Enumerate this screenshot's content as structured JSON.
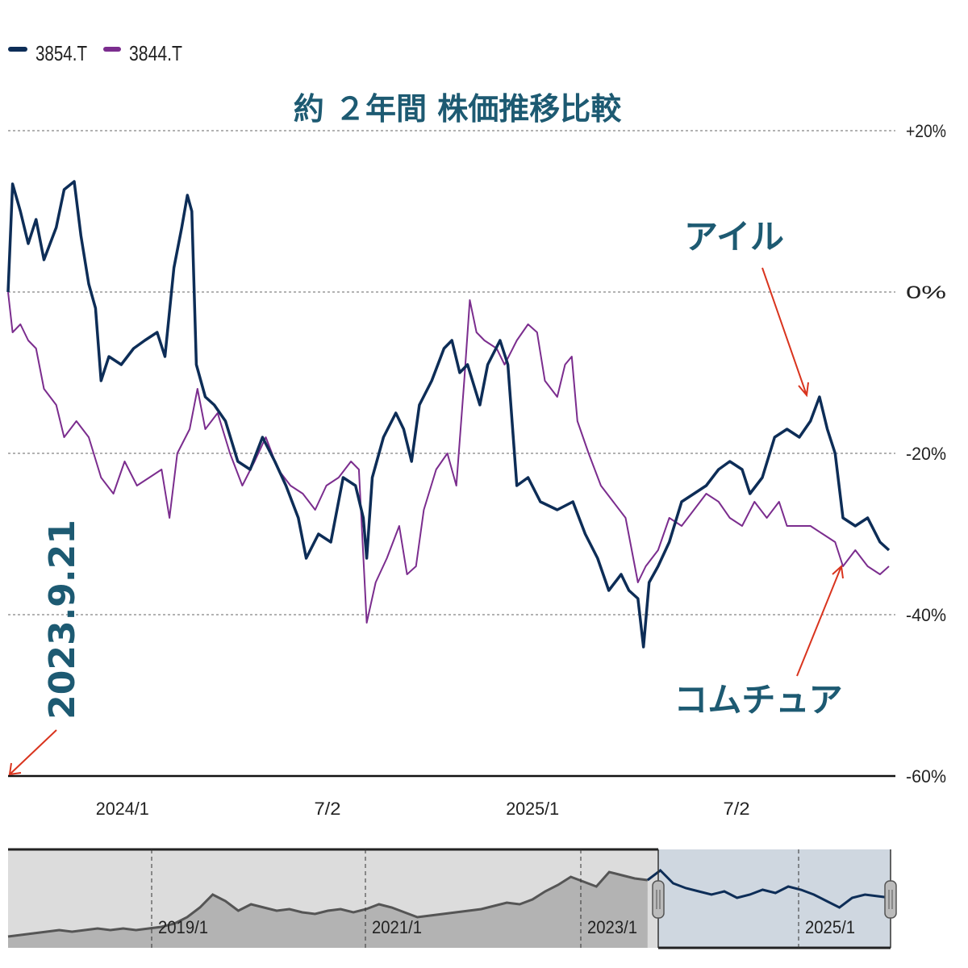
{
  "chart_data": {
    "type": "line",
    "title": "約 ２年間 株価推移比較",
    "xlabel": "",
    "ylabel": "",
    "ylim": [
      -60,
      20
    ],
    "xlim": [
      "2023-09-21",
      "2025-11-15"
    ],
    "y_ticks": [
      "+20%",
      "0%",
      "-20%",
      "-40%",
      "-60%"
    ],
    "y_tick_values": [
      20,
      0,
      -20,
      -40,
      -60
    ],
    "x_ticks": [
      "2024/1",
      "7/2",
      "2025/1",
      "7/2"
    ],
    "x_tick_dates": [
      "2024-01-01",
      "2024-07-02",
      "2025-01-01",
      "2025-07-02"
    ],
    "grid": true,
    "legend_position": "top-left",
    "series": [
      {
        "name": "3854.T",
        "color": "#0d2d57",
        "points": [
          [
            "2023-09-21",
            0
          ],
          [
            "2023-09-25",
            13.4
          ],
          [
            "2023-10-02",
            10
          ],
          [
            "2023-10-09",
            6
          ],
          [
            "2023-10-16",
            9
          ],
          [
            "2023-10-23",
            4
          ],
          [
            "2023-11-03",
            8
          ],
          [
            "2023-11-10",
            12.7
          ],
          [
            "2023-11-19",
            13.7
          ],
          [
            "2023-11-25",
            7
          ],
          [
            "2023-12-02",
            1
          ],
          [
            "2023-12-08",
            -2
          ],
          [
            "2023-12-13",
            -11
          ],
          [
            "2023-12-20",
            -8
          ],
          [
            "2023-12-31",
            -9
          ],
          [
            "2024-01-11",
            -7
          ],
          [
            "2024-01-21",
            -6
          ],
          [
            "2024-02-01",
            -5
          ],
          [
            "2024-02-08",
            -8
          ],
          [
            "2024-02-16",
            3
          ],
          [
            "2024-02-23",
            8
          ],
          [
            "2024-02-28",
            12
          ],
          [
            "2024-03-03",
            10
          ],
          [
            "2024-03-07",
            -9
          ],
          [
            "2024-03-15",
            -13
          ],
          [
            "2024-03-23",
            -14
          ],
          [
            "2024-04-02",
            -16
          ],
          [
            "2024-04-13",
            -21
          ],
          [
            "2024-04-24",
            -22
          ],
          [
            "2024-05-05",
            -18
          ],
          [
            "2024-05-16",
            -21
          ],
          [
            "2024-05-26",
            -24
          ],
          [
            "2024-06-06",
            -28
          ],
          [
            "2024-06-13",
            -33
          ],
          [
            "2024-06-24",
            -30
          ],
          [
            "2024-07-05",
            -31
          ],
          [
            "2024-07-16",
            -23
          ],
          [
            "2024-07-27",
            -24
          ],
          [
            "2024-08-03",
            -28
          ],
          [
            "2024-08-06",
            -33
          ],
          [
            "2024-08-11",
            -23
          ],
          [
            "2024-08-21",
            -18
          ],
          [
            "2024-09-01",
            -15
          ],
          [
            "2024-09-08",
            -17
          ],
          [
            "2024-09-15",
            -21
          ],
          [
            "2024-09-22",
            -14
          ],
          [
            "2024-10-03",
            -11
          ],
          [
            "2024-10-14",
            -7
          ],
          [
            "2024-10-21",
            -6
          ],
          [
            "2024-10-28",
            -10
          ],
          [
            "2024-11-04",
            -9
          ],
          [
            "2024-11-15",
            -14
          ],
          [
            "2024-11-22",
            -9
          ],
          [
            "2024-12-03",
            -6
          ],
          [
            "2024-12-10",
            -9
          ],
          [
            "2024-12-18",
            -24
          ],
          [
            "2024-12-28",
            -23
          ],
          [
            "2025-01-08",
            -26
          ],
          [
            "2025-01-23",
            -27
          ],
          [
            "2025-02-06",
            -26
          ],
          [
            "2025-02-17",
            -30
          ],
          [
            "2025-02-28",
            -33
          ],
          [
            "2025-03-10",
            -37
          ],
          [
            "2025-03-21",
            -35
          ],
          [
            "2025-03-28",
            -37
          ],
          [
            "2025-04-05",
            -38
          ],
          [
            "2025-04-10",
            -44
          ],
          [
            "2025-04-15",
            -36
          ],
          [
            "2025-04-23",
            -34
          ],
          [
            "2025-05-03",
            -31
          ],
          [
            "2025-05-14",
            -26
          ],
          [
            "2025-05-25",
            -25
          ],
          [
            "2025-06-05",
            -24
          ],
          [
            "2025-06-16",
            -22
          ],
          [
            "2025-06-26",
            -21
          ],
          [
            "2025-07-07",
            -22
          ],
          [
            "2025-07-14",
            -25
          ],
          [
            "2025-07-25",
            -23
          ],
          [
            "2025-08-05",
            -18
          ],
          [
            "2025-08-16",
            -17
          ],
          [
            "2025-08-27",
            -18
          ],
          [
            "2025-09-06",
            -16
          ],
          [
            "2025-09-14",
            -13
          ],
          [
            "2025-09-21",
            -17
          ],
          [
            "2025-09-28",
            -20
          ],
          [
            "2025-10-05",
            -28
          ],
          [
            "2025-10-16",
            -29
          ],
          [
            "2025-10-27",
            -28
          ],
          [
            "2025-11-07",
            -31
          ],
          [
            "2025-11-15",
            -32
          ]
        ]
      },
      {
        "name": "3844.T",
        "color": "#7b2d8e",
        "points": [
          [
            "2023-09-21",
            0
          ],
          [
            "2023-09-25",
            -5
          ],
          [
            "2023-10-02",
            -4
          ],
          [
            "2023-10-09",
            -6
          ],
          [
            "2023-10-16",
            -7
          ],
          [
            "2023-10-23",
            -12
          ],
          [
            "2023-11-03",
            -14
          ],
          [
            "2023-11-10",
            -18
          ],
          [
            "2023-11-21",
            -16
          ],
          [
            "2023-12-02",
            -18
          ],
          [
            "2023-12-13",
            -23
          ],
          [
            "2023-12-24",
            -25
          ],
          [
            "2024-01-03",
            -21
          ],
          [
            "2024-01-14",
            -24
          ],
          [
            "2024-01-25",
            -23
          ],
          [
            "2024-02-05",
            -22
          ],
          [
            "2024-02-12",
            -28
          ],
          [
            "2024-02-19",
            -20
          ],
          [
            "2024-03-01",
            -17
          ],
          [
            "2024-03-08",
            -12
          ],
          [
            "2024-03-15",
            -17
          ],
          [
            "2024-03-26",
            -15
          ],
          [
            "2024-04-06",
            -20
          ],
          [
            "2024-04-17",
            -24
          ],
          [
            "2024-04-28",
            -21
          ],
          [
            "2024-05-08",
            -18
          ],
          [
            "2024-05-19",
            -22
          ],
          [
            "2024-05-30",
            -24
          ],
          [
            "2024-06-10",
            -25
          ],
          [
            "2024-06-21",
            -27
          ],
          [
            "2024-07-01",
            -24
          ],
          [
            "2024-07-12",
            -23
          ],
          [
            "2024-07-23",
            -21
          ],
          [
            "2024-07-30",
            -22
          ],
          [
            "2024-08-06",
            -41
          ],
          [
            "2024-08-14",
            -36
          ],
          [
            "2024-08-24",
            -33
          ],
          [
            "2024-09-04",
            -29
          ],
          [
            "2024-09-11",
            -35
          ],
          [
            "2024-09-19",
            -34
          ],
          [
            "2024-09-26",
            -27
          ],
          [
            "2024-10-07",
            -22
          ],
          [
            "2024-10-17",
            -20
          ],
          [
            "2024-10-25",
            -24
          ],
          [
            "2024-11-01",
            -11
          ],
          [
            "2024-11-06",
            -1
          ],
          [
            "2024-11-12",
            -5
          ],
          [
            "2024-11-19",
            -6
          ],
          [
            "2024-11-30",
            -7
          ],
          [
            "2024-12-07",
            -9
          ],
          [
            "2024-12-18",
            -6
          ],
          [
            "2024-12-28",
            -4
          ],
          [
            "2025-01-05",
            -5
          ],
          [
            "2025-01-12",
            -11
          ],
          [
            "2025-01-23",
            -13
          ],
          [
            "2025-01-30",
            -9
          ],
          [
            "2025-02-05",
            -8
          ],
          [
            "2025-02-10",
            -16
          ],
          [
            "2025-02-20",
            -20
          ],
          [
            "2025-03-03",
            -24
          ],
          [
            "2025-03-14",
            -26
          ],
          [
            "2025-03-25",
            -28
          ],
          [
            "2025-04-05",
            -36
          ],
          [
            "2025-04-12",
            -34
          ],
          [
            "2025-04-23",
            -32
          ],
          [
            "2025-05-03",
            -28
          ],
          [
            "2025-05-14",
            -29
          ],
          [
            "2025-05-25",
            -27
          ],
          [
            "2025-06-05",
            -25
          ],
          [
            "2025-06-16",
            -26
          ],
          [
            "2025-06-26",
            -28
          ],
          [
            "2025-07-07",
            -29
          ],
          [
            "2025-07-18",
            -26
          ],
          [
            "2025-07-29",
            -28
          ],
          [
            "2025-08-09",
            -26
          ],
          [
            "2025-08-16",
            -29
          ],
          [
            "2025-08-27",
            -29
          ],
          [
            "2025-09-06",
            -29
          ],
          [
            "2025-09-17",
            -30
          ],
          [
            "2025-09-28",
            -31
          ],
          [
            "2025-10-05",
            -34
          ],
          [
            "2025-10-16",
            -32
          ],
          [
            "2025-10-27",
            -34
          ],
          [
            "2025-11-07",
            -35
          ],
          [
            "2025-11-15",
            -34
          ]
        ]
      }
    ],
    "annotations": [
      {
        "text": "アイル",
        "target_series": "3854.T",
        "arrow_color": "#d9341e"
      },
      {
        "text": "コムチュア",
        "target_series": "3844.T",
        "arrow_color": "#d9341e"
      },
      {
        "text": "2023.9.21",
        "arrow_color": "#d9341e"
      }
    ],
    "navigator": {
      "ticks": [
        "2019/1",
        "2021/1",
        "2023/1",
        "2025/1"
      ],
      "selected_color": "#cfd7e0",
      "unselected_color": "#dcdcdc",
      "line_color_unselected": "#555555",
      "line_color_selected": "#0d2d57",
      "levels": [
        2,
        3,
        4,
        5,
        6,
        5,
        6,
        7,
        6,
        7,
        6,
        7,
        8,
        10,
        14,
        20,
        28,
        24,
        18,
        22,
        20,
        18,
        19,
        17,
        16,
        18,
        19,
        17,
        19,
        22,
        20,
        17,
        14,
        15,
        16,
        17,
        18,
        19,
        21,
        23,
        22,
        25,
        30,
        34,
        39,
        36,
        33,
        42,
        40,
        38,
        37,
        43,
        35,
        32,
        30,
        28,
        30,
        26,
        28,
        31,
        29,
        33,
        31,
        28,
        24,
        20,
        26,
        28,
        27,
        26
      ]
    }
  }
}
